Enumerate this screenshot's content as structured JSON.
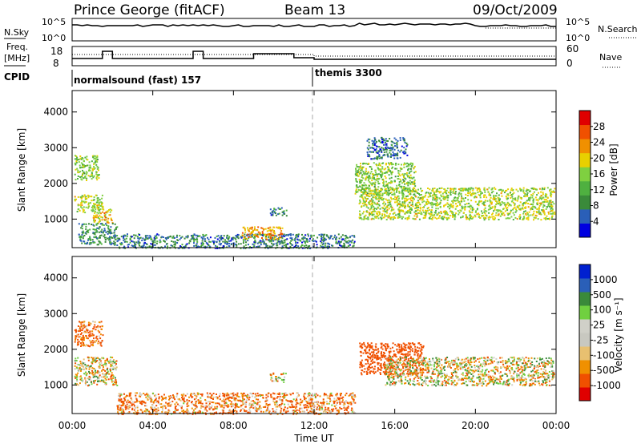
{
  "header": {
    "station": "Prince George (fitACF)",
    "beam": "Beam 13",
    "date": "09/Oct/2009"
  },
  "aux_panels": {
    "nsky_label": "N.Sky",
    "nsky_ticks": [
      "10^5",
      "10^0"
    ],
    "nsearch_label": "N.Search",
    "nsearch_ticks": [
      "10^5",
      "10^0"
    ],
    "freq_label_1": "Freq.",
    "freq_label_2": "[MHz]",
    "freq_ticks": [
      "18",
      "8"
    ],
    "nave_label": "Nave",
    "nave_ticks": [
      "60",
      "0"
    ],
    "cpid_label": "CPID",
    "cpid_1": "normalsound (fast) 157",
    "cpid_2": "themis 3300"
  },
  "time_axis": {
    "label": "Time UT",
    "ticks": [
      "00:00",
      "04:00",
      "08:00",
      "12:00",
      "16:00",
      "20:00",
      "00:00"
    ]
  },
  "colors": {
    "power": [
      "#0000e0",
      "#2a5fb8",
      "#3a8a3a",
      "#4fb040",
      "#7fd040",
      "#e8d000",
      "#f09000",
      "#f05000",
      "#e00000"
    ],
    "velocity": [
      "#e00000",
      "#f05000",
      "#f09000",
      "#e8c070",
      "#c8c8c0",
      "#d0d0c8",
      "#70d040",
      "#3a8a3a",
      "#2a5fb8",
      "#0020d0"
    ]
  },
  "chart_data": [
    {
      "type": "heatmap",
      "title": "",
      "xlabel": "",
      "ylabel": "Slant Range [km]",
      "xlim": [
        0,
        24
      ],
      "ylim": [
        200,
        4600
      ],
      "yticks": [
        "1000",
        "2000",
        "3000",
        "4000"
      ],
      "colorbar": {
        "label": "Power [dB]",
        "ticks": [
          "4",
          "8",
          "12",
          "16",
          "20",
          "24",
          "28"
        ],
        "range": [
          0,
          30
        ]
      },
      "regions": [
        {
          "t0": 0.1,
          "t1": 1.5,
          "r0": 1200,
          "r1": 1700,
          "value": 16
        },
        {
          "t0": 0.1,
          "t1": 1.3,
          "r0": 2100,
          "r1": 2800,
          "value": 14
        },
        {
          "t0": 1.0,
          "t1": 2.0,
          "r0": 900,
          "r1": 1300,
          "value": 20
        },
        {
          "t0": 0.3,
          "t1": 2.2,
          "r0": 300,
          "r1": 900,
          "value": 8
        },
        {
          "t0": 2.0,
          "t1": 14.0,
          "r0": 200,
          "r1": 600,
          "value": 6
        },
        {
          "t0": 8.4,
          "t1": 10.4,
          "r0": 450,
          "r1": 800,
          "value": 22
        },
        {
          "t0": 9.8,
          "t1": 10.6,
          "r0": 1100,
          "r1": 1350,
          "value": 6
        },
        {
          "t0": 14.2,
          "t1": 23.9,
          "r0": 1000,
          "r1": 1900,
          "value": 16
        },
        {
          "t0": 14.0,
          "t1": 17.0,
          "r0": 1700,
          "r1": 2600,
          "value": 14
        },
        {
          "t0": 14.6,
          "t1": 16.6,
          "r0": 2700,
          "r1": 3300,
          "value": 5
        }
      ]
    },
    {
      "type": "heatmap",
      "title": "",
      "xlabel": "Time UT",
      "ylabel": "Slant Range [km]",
      "xlim": [
        0,
        24
      ],
      "ylim": [
        200,
        4600
      ],
      "yticks": [
        "1000",
        "2000",
        "3000",
        "4000"
      ],
      "colorbar": {
        "label": "Velocity [m s⁻¹]",
        "ticks": [
          "1000",
          "500",
          "100",
          "25",
          "-25",
          "-100",
          "-500",
          "-1000"
        ],
        "range": [
          -1000,
          1000
        ]
      },
      "regions": [
        {
          "t0": 0.1,
          "t1": 1.5,
          "r0": 2100,
          "r1": 2800,
          "value": -150
        },
        {
          "t0": 0.1,
          "t1": 2.2,
          "r0": 1000,
          "r1": 1800,
          "value": 0
        },
        {
          "t0": 2.2,
          "t1": 14.0,
          "r0": 200,
          "r1": 800,
          "value": -100
        },
        {
          "t0": 14.2,
          "t1": 17.4,
          "r0": 1300,
          "r1": 2200,
          "value": -300
        },
        {
          "t0": 15.5,
          "t1": 23.9,
          "r0": 1000,
          "r1": 1800,
          "value": 0
        },
        {
          "t0": 9.8,
          "t1": 10.6,
          "r0": 1100,
          "r1": 1350,
          "value": 0
        }
      ]
    }
  ]
}
